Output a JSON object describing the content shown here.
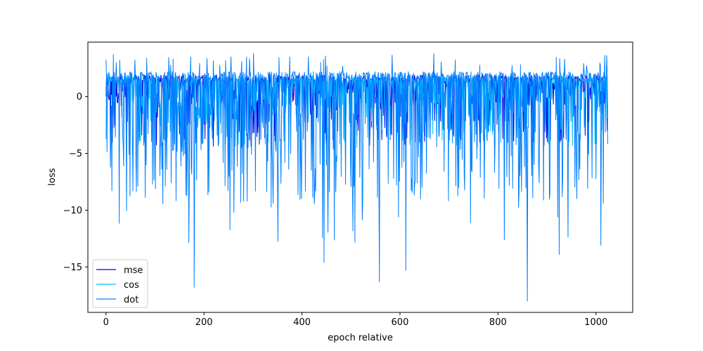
{
  "chart_data": {
    "type": "line",
    "title": "",
    "xlabel": "epoch relative",
    "ylabel": "loss",
    "xlim": [
      -37,
      1075
    ],
    "ylim": [
      -19,
      4.8
    ],
    "x_ticks": [
      0,
      200,
      400,
      600,
      800,
      1000
    ],
    "x_tick_labels": [
      "0",
      "200",
      "400",
      "600",
      "800",
      "1000"
    ],
    "y_ticks": [
      0,
      -5,
      -10,
      -15
    ],
    "y_tick_labels": [
      "0",
      "−5",
      "−10",
      "−15"
    ],
    "x_range": [
      0,
      1024
    ],
    "grid": false,
    "legend_position": "lower-left",
    "series": [
      {
        "name": "mse",
        "color": "#0000e0",
        "band": [
          -4.5,
          2.4
        ],
        "typical": [
          -0.8,
          1.9
        ]
      },
      {
        "name": "cos",
        "color": "#00c0ff",
        "band": [
          -4.5,
          2.2
        ],
        "typical": [
          -1.0,
          1.8
        ]
      },
      {
        "name": "dot",
        "color": "#0080ff",
        "band": [
          -18.0,
          3.8
        ],
        "typical": [
          -4.5,
          2.2
        ],
        "notable_points": [
          {
            "x": 180,
            "y": -16.8
          },
          {
            "x": 445,
            "y": -14.6
          },
          {
            "x": 558,
            "y": -16.3
          },
          {
            "x": 612,
            "y": -15.3
          },
          {
            "x": 860,
            "y": -18.0
          },
          {
            "x": 925,
            "y": -13.9
          },
          {
            "x": 1010,
            "y": -13.1
          },
          {
            "x": 15,
            "y": 3.7
          },
          {
            "x": 255,
            "y": 3.5
          }
        ]
      }
    ]
  }
}
